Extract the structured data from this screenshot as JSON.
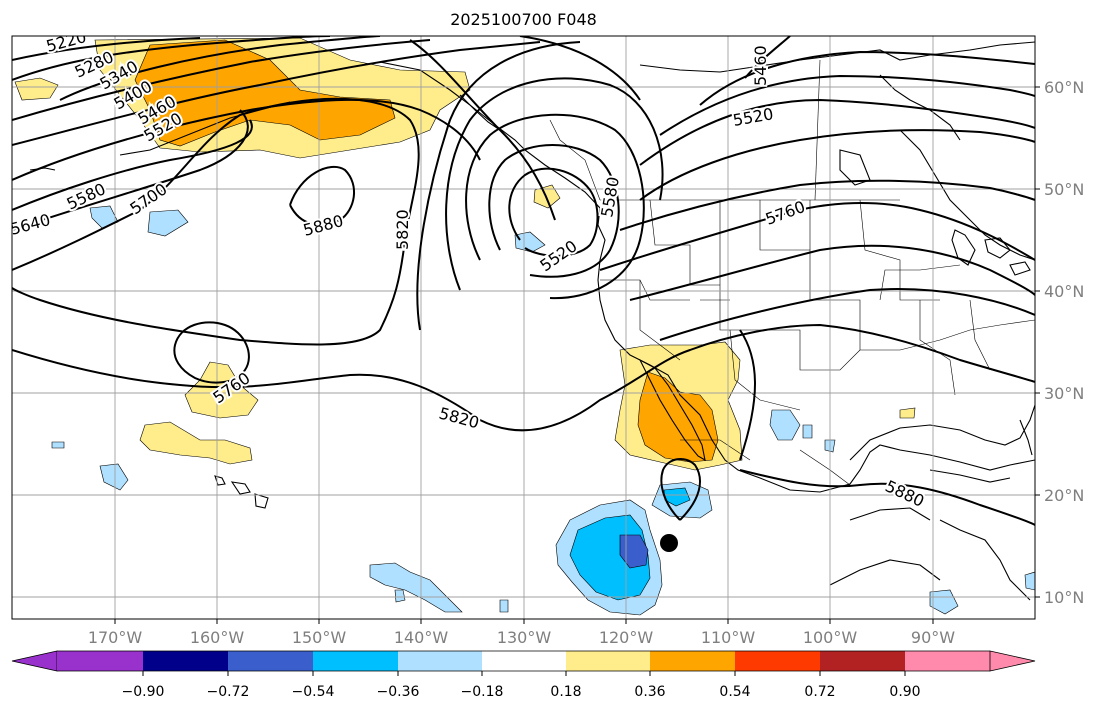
{
  "title": "2025100700 F048",
  "lat_labels": [
    "60°N",
    "50°N",
    "40°N",
    "30°N",
    "20°N",
    "10°N"
  ],
  "lon_labels": [
    "170°W",
    "160°W",
    "150°W",
    "140°W",
    "130°W",
    "120°W",
    "110°W",
    "100°W",
    "90°W"
  ],
  "colorbar": {
    "ticks": [
      "−0.90",
      "−0.72",
      "−0.54",
      "−0.36",
      "−0.18",
      "0.18",
      "0.36",
      "0.54",
      "0.72",
      "0.90"
    ],
    "colors": [
      "#9932cc",
      "#00008b",
      "#3a5fcd",
      "#00bfff",
      "#b0e0ff",
      "#ffffff",
      "#ffec8b",
      "#ffa500",
      "#ff3a00",
      "#b22222",
      "#ff8aac"
    ]
  },
  "contour_labels": [
    "5220",
    "5280",
    "5340",
    "5400",
    "5460",
    "5520",
    "5580",
    "5640",
    "5700",
    "5880",
    "5820",
    "5520",
    "5580",
    "5460",
    "5520",
    "5760",
    "5760",
    "5820",
    "5880"
  ],
  "colors": {
    "contour": "#000000",
    "grid": "#a0a0a0",
    "marker": "#000000"
  }
}
